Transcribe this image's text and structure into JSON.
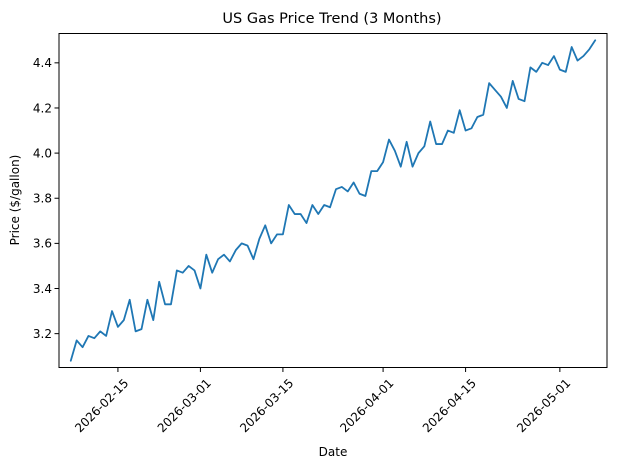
{
  "chart_data": {
    "type": "line",
    "title": "US Gas Price Trend (3 Months)",
    "xlabel": "Date",
    "ylabel": "Price ($/gallon)",
    "x_axis_type": "date",
    "xlim": [
      "2026-02-05",
      "2026-05-09"
    ],
    "ylim": [
      3.05,
      4.53
    ],
    "grid": false,
    "legend": "none",
    "line_color": "#1f77b4",
    "x_ticks": [
      "2026-02-15",
      "2026-03-01",
      "2026-03-15",
      "2026-04-01",
      "2026-04-15",
      "2026-05-01"
    ],
    "y_ticks": [
      "3.2",
      "3.4",
      "3.6",
      "3.8",
      "4.0",
      "4.2",
      "4.4"
    ],
    "series": [
      {
        "x": [
          "2026-02-07",
          "2026-02-08",
          "2026-02-09",
          "2026-02-10",
          "2026-02-11",
          "2026-02-12",
          "2026-02-13",
          "2026-02-14",
          "2026-02-15",
          "2026-02-16",
          "2026-02-17",
          "2026-02-18",
          "2026-02-19",
          "2026-02-20",
          "2026-02-21",
          "2026-02-22",
          "2026-02-23",
          "2026-02-24",
          "2026-02-25",
          "2026-02-26",
          "2026-02-27",
          "2026-02-28",
          "2026-03-01",
          "2026-03-02",
          "2026-03-03",
          "2026-03-04",
          "2026-03-05",
          "2026-03-06",
          "2026-03-07",
          "2026-03-08",
          "2026-03-09",
          "2026-03-10",
          "2026-03-11",
          "2026-03-12",
          "2026-03-13",
          "2026-03-14",
          "2026-03-15",
          "2026-03-16",
          "2026-03-17",
          "2026-03-18",
          "2026-03-19",
          "2026-03-20",
          "2026-03-21",
          "2026-03-22",
          "2026-03-23",
          "2026-03-24",
          "2026-03-25",
          "2026-03-26",
          "2026-03-27",
          "2026-03-28",
          "2026-03-29",
          "2026-03-30",
          "2026-03-31",
          "2026-04-01",
          "2026-04-02",
          "2026-04-03",
          "2026-04-04",
          "2026-04-05",
          "2026-04-06",
          "2026-04-07",
          "2026-04-08",
          "2026-04-09",
          "2026-04-10",
          "2026-04-11",
          "2026-04-12",
          "2026-04-13",
          "2026-04-14",
          "2026-04-15",
          "2026-04-16",
          "2026-04-17",
          "2026-04-18",
          "2026-04-19",
          "2026-04-20",
          "2026-04-21",
          "2026-04-22",
          "2026-04-23",
          "2026-04-24",
          "2026-04-25",
          "2026-04-26",
          "2026-04-27",
          "2026-04-28",
          "2026-04-29",
          "2026-04-30",
          "2026-05-01",
          "2026-05-02",
          "2026-05-03",
          "2026-05-04",
          "2026-05-05",
          "2026-05-06",
          "2026-05-07"
        ],
        "y": [
          3.08,
          3.17,
          3.14,
          3.19,
          3.18,
          3.21,
          3.19,
          3.3,
          3.23,
          3.26,
          3.35,
          3.21,
          3.22,
          3.35,
          3.26,
          3.43,
          3.33,
          3.33,
          3.48,
          3.47,
          3.5,
          3.48,
          3.4,
          3.55,
          3.47,
          3.53,
          3.55,
          3.52,
          3.57,
          3.6,
          3.59,
          3.53,
          3.62,
          3.68,
          3.6,
          3.64,
          3.64,
          3.77,
          3.73,
          3.73,
          3.69,
          3.77,
          3.73,
          3.77,
          3.76,
          3.84,
          3.85,
          3.83,
          3.87,
          3.82,
          3.81,
          3.92,
          3.92,
          3.96,
          4.06,
          4.01,
          3.94,
          4.05,
          3.94,
          4.0,
          4.03,
          4.14,
          4.04,
          4.04,
          4.1,
          4.09,
          4.19,
          4.1,
          4.11,
          4.16,
          4.17,
          4.31,
          4.28,
          4.25,
          4.2,
          4.32,
          4.24,
          4.23,
          4.38,
          4.36,
          4.4,
          4.39,
          4.43,
          4.37,
          4.36,
          4.47,
          4.41,
          4.43,
          4.46,
          4.5
        ]
      }
    ]
  }
}
